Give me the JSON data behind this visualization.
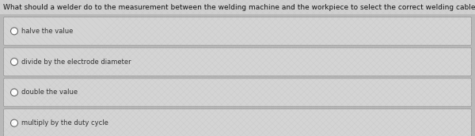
{
  "question": "What should a welder do to the measurement between the welding machine and the workpiece to select the correct welding cable size?",
  "options": [
    "halve the value",
    "divide by the electrode diameter",
    "double the value",
    "multiply by the duty cycle"
  ],
  "bg_color": "#b8b8b8",
  "question_bg_color": "#d0d0d0",
  "option_box_color": "#d4d4d4",
  "option_border_color": "#999999",
  "option_text_color": "#333333",
  "question_text_color": "#111111",
  "question_fontsize": 6.5,
  "option_fontsize": 6.0,
  "figure_width": 6.0,
  "figure_height": 1.72
}
